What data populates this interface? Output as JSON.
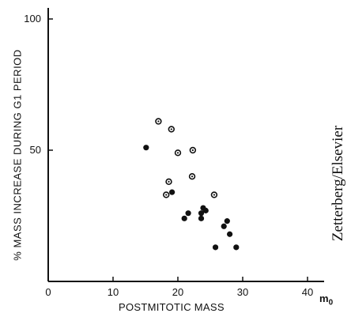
{
  "chart_data": {
    "type": "scatter",
    "title": "",
    "xlabel": "POSTMITOTIC MASS",
    "x_unit_main": "m",
    "x_unit_sub": "0",
    "ylabel": "% MASS INCREASE DURING G1 PERIOD",
    "xlim": [
      0,
      42
    ],
    "ylim": [
      0,
      100
    ],
    "x_ticks": [
      "0",
      "10",
      "20",
      "30",
      "40"
    ],
    "y_ticks": [
      "50",
      "100"
    ],
    "grid": false,
    "series": [
      {
        "marker": "open-circle-with-dot",
        "points": [
          {
            "x": 17.0,
            "y": 61
          },
          {
            "x": 19.0,
            "y": 58
          },
          {
            "x": 20.0,
            "y": 49
          },
          {
            "x": 22.3,
            "y": 50
          },
          {
            "x": 18.6,
            "y": 38
          },
          {
            "x": 22.2,
            "y": 40
          },
          {
            "x": 25.6,
            "y": 33
          },
          {
            "x": 18.2,
            "y": 33
          }
        ]
      },
      {
        "marker": "filled-circle",
        "points": [
          {
            "x": 15.1,
            "y": 51
          },
          {
            "x": 19.1,
            "y": 34
          },
          {
            "x": 21.6,
            "y": 26
          },
          {
            "x": 21.0,
            "y": 24
          },
          {
            "x": 23.9,
            "y": 28
          },
          {
            "x": 24.3,
            "y": 27
          },
          {
            "x": 23.6,
            "y": 26
          },
          {
            "x": 23.6,
            "y": 24
          },
          {
            "x": 27.6,
            "y": 23
          },
          {
            "x": 27.1,
            "y": 21
          },
          {
            "x": 28.0,
            "y": 18
          },
          {
            "x": 25.8,
            "y": 13
          },
          {
            "x": 29.0,
            "y": 13
          }
        ]
      }
    ]
  },
  "credit": "Zetterberg/Elsevier"
}
